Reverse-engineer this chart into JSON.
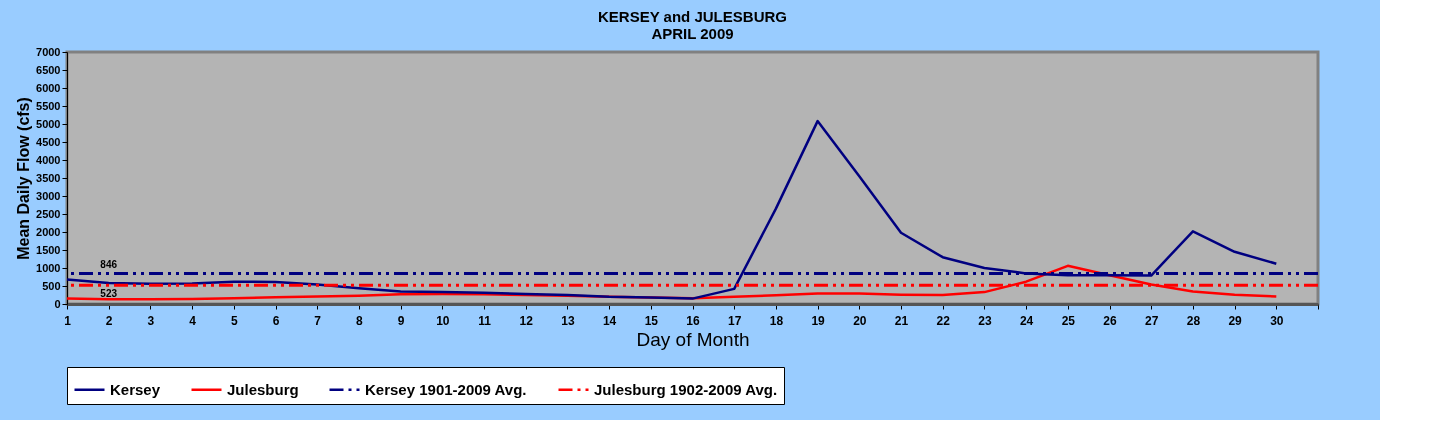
{
  "chart_data": {
    "type": "line",
    "title": "KERSEY and JULESBURG\nAPRIL 2009",
    "xlabel": "Day of Month",
    "ylabel": "Mean Daily Flow (cfs)",
    "x": [
      1,
      2,
      3,
      4,
      5,
      6,
      7,
      8,
      9,
      10,
      11,
      12,
      13,
      14,
      15,
      16,
      17,
      18,
      19,
      20,
      21,
      22,
      23,
      24,
      25,
      26,
      27,
      28,
      29,
      30
    ],
    "series": [
      {
        "name": "Kersey",
        "color": "#000080",
        "values": [
          680,
          580,
          560,
          570,
          620,
          610,
          540,
          440,
          350,
          330,
          310,
          280,
          250,
          200,
          180,
          150,
          420,
          2650,
          5080,
          3550,
          1980,
          1300,
          1000,
          850,
          800,
          800,
          790,
          2020,
          1450,
          1120
        ]
      },
      {
        "name": "Julesburg",
        "color": "#ff0000",
        "values": [
          150,
          130,
          130,
          140,
          160,
          190,
          210,
          230,
          270,
          280,
          270,
          250,
          230,
          200,
          180,
          160,
          200,
          240,
          290,
          290,
          260,
          250,
          330,
          620,
          1060,
          800,
          540,
          350,
          260,
          210
        ]
      }
    ],
    "ref_lines": [
      {
        "axis": "y",
        "value": 846,
        "label": "Kersey 1901-2009 Avg.",
        "color": "#000080",
        "line_style": "dashed"
      },
      {
        "axis": "y",
        "value": 523,
        "label": "Julesburg 1902-2009 Avg.",
        "color": "#ff0000",
        "line_style": "dashed"
      }
    ],
    "annotations": [
      {
        "text": "846",
        "x": 2,
        "y": 846
      },
      {
        "text": "523",
        "x": 2,
        "y": 523
      }
    ],
    "xlim": [
      1,
      31
    ],
    "xticks": [
      1,
      2,
      3,
      4,
      5,
      6,
      7,
      8,
      9,
      10,
      11,
      12,
      13,
      14,
      15,
      16,
      17,
      18,
      19,
      20,
      21,
      22,
      23,
      24,
      25,
      26,
      27,
      28,
      29,
      30,
      {
        "value": 31,
        "label": null
      }
    ],
    "ylim": [
      0,
      7000
    ],
    "yticks": [
      0,
      500,
      1000,
      1500,
      2000,
      2500,
      3000,
      3500,
      4000,
      4500,
      5000,
      5500,
      6000,
      6500,
      7000
    ],
    "grid": false,
    "legend": "bottom",
    "marker": "none",
    "line_style": "solid"
  }
}
